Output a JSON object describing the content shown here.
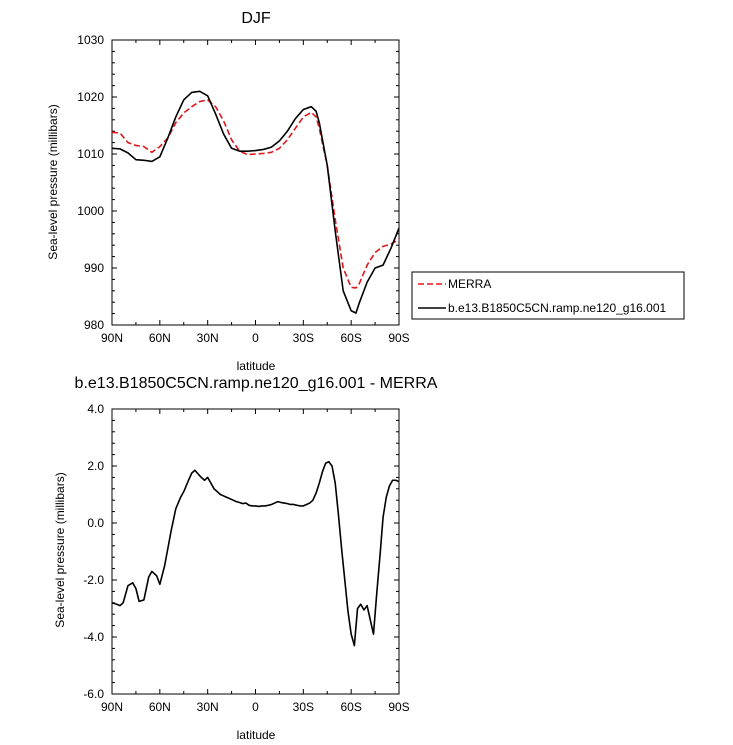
{
  "chart_data": [
    {
      "type": "line",
      "title": "DJF",
      "xlabel": "latitude",
      "ylabel": "Sea-level pressure (millibars)",
      "ylim": [
        980,
        1030
      ],
      "xlim": [
        90,
        -90
      ],
      "x_ticks": [
        90,
        60,
        30,
        0,
        -30,
        -60,
        -90
      ],
      "x_tick_labels": [
        "90N",
        "60N",
        "30N",
        "0",
        "30S",
        "60S",
        "90S"
      ],
      "y_ticks": [
        980,
        990,
        1000,
        1010,
        1020,
        1030
      ],
      "y_tick_labels": [
        "980",
        "990",
        "1000",
        "1010",
        "1020",
        "1030"
      ],
      "grid": false,
      "legend": "right-outside",
      "series": [
        {
          "name": "MERRA",
          "color": "#e0161b",
          "style": "dashed",
          "x": [
            90,
            85,
            80,
            75,
            70,
            65,
            60,
            55,
            50,
            45,
            40,
            35,
            30,
            25,
            20,
            15,
            10,
            5,
            0,
            -5,
            -10,
            -15,
            -20,
            -25,
            -30,
            -35,
            -38,
            -40,
            -45,
            -50,
            -55,
            -60,
            -63,
            -65,
            -70,
            -75,
            -80,
            -85,
            -90
          ],
          "y": [
            1013.8,
            1013.7,
            1012,
            1011.5,
            1011.3,
            1010.3,
            1011.3,
            1012.8,
            1015.5,
            1017.2,
            1018.3,
            1019.2,
            1019.5,
            1018.3,
            1015.8,
            1012.5,
            1010.5,
            1009.9,
            1010,
            1010.1,
            1010.3,
            1011,
            1012.5,
            1014.5,
            1016.5,
            1017.3,
            1016.5,
            1014.5,
            1008,
            998.5,
            990,
            986.6,
            986.5,
            987.2,
            990.5,
            992.7,
            993.8,
            994.2,
            995
          ]
        },
        {
          "name": "b.e13.B1850C5CN.ramp.ne120_g16.001",
          "color": "#000000",
          "style": "solid",
          "x": [
            90,
            85,
            80,
            75,
            70,
            65,
            60,
            55,
            50,
            45,
            40,
            35,
            30,
            25,
            20,
            15,
            10,
            5,
            0,
            -5,
            -10,
            -15,
            -20,
            -25,
            -30,
            -35,
            -38,
            -40,
            -45,
            -50,
            -55,
            -60,
            -63,
            -65,
            -70,
            -75,
            -80,
            -85,
            -90
          ],
          "y": [
            1011,
            1010.9,
            1010.2,
            1009,
            1008.9,
            1008.7,
            1009.5,
            1012.8,
            1016.5,
            1019.5,
            1020.8,
            1021,
            1020.2,
            1017,
            1013.5,
            1011,
            1010.5,
            1010.5,
            1010.6,
            1010.8,
            1011.2,
            1012.3,
            1014,
            1016.2,
            1017.8,
            1018.3,
            1017.5,
            1015.5,
            1008,
            996.5,
            986,
            982.5,
            982.1,
            983.8,
            987.5,
            990,
            990.5,
            993.5,
            997
          ]
        }
      ]
    },
    {
      "type": "line",
      "title": "b.e13.B1850C5CN.ramp.ne120_g16.001 - MERRA",
      "xlabel": "latitude",
      "ylabel": "Sea-level pressure (millibars)",
      "ylim": [
        -6,
        4
      ],
      "xlim": [
        90,
        -90
      ],
      "x_ticks": [
        90,
        60,
        30,
        0,
        -30,
        -60,
        -90
      ],
      "x_tick_labels": [
        "90N",
        "60N",
        "30N",
        "0",
        "30S",
        "60S",
        "90S"
      ],
      "y_ticks": [
        -6,
        -4,
        -2,
        0,
        2,
        4
      ],
      "y_tick_labels": [
        "-6.0",
        "-4.0",
        "-2.0",
        "0.0",
        "2.0",
        "4.0"
      ],
      "grid": false,
      "series": [
        {
          "color": "#000000",
          "style": "solid",
          "x": [
            90,
            87,
            85,
            83,
            80,
            77,
            75,
            73,
            70,
            67,
            65,
            62,
            60,
            57,
            55,
            53,
            50,
            47,
            45,
            42,
            40,
            38,
            36,
            34,
            32,
            30,
            28,
            26,
            24,
            22,
            20,
            18,
            16,
            14,
            12,
            10,
            8,
            6,
            4,
            2,
            0,
            -2,
            -4,
            -6,
            -8,
            -10,
            -12,
            -14,
            -16,
            -18,
            -20,
            -22,
            -24,
            -26,
            -28,
            -30,
            -32,
            -34,
            -36,
            -38,
            -40,
            -42,
            -44,
            -46,
            -48,
            -50,
            -52,
            -54,
            -56,
            -58,
            -60,
            -62,
            -64,
            -66,
            -68,
            -70,
            -72,
            -74,
            -76,
            -78,
            -80,
            -82,
            -84,
            -86,
            -88,
            -90
          ],
          "y": [
            -2.8,
            -2.85,
            -2.9,
            -2.8,
            -2.2,
            -2.1,
            -2.3,
            -2.75,
            -2.7,
            -1.9,
            -1.7,
            -1.85,
            -2.15,
            -1.5,
            -0.9,
            -0.3,
            0.5,
            0.9,
            1.1,
            1.5,
            1.75,
            1.85,
            1.72,
            1.6,
            1.5,
            1.6,
            1.4,
            1.2,
            1.1,
            1.0,
            0.95,
            0.9,
            0.85,
            0.8,
            0.75,
            0.72,
            0.68,
            0.7,
            0.62,
            0.6,
            0.6,
            0.58,
            0.6,
            0.6,
            0.62,
            0.65,
            0.7,
            0.75,
            0.72,
            0.7,
            0.68,
            0.65,
            0.65,
            0.62,
            0.6,
            0.6,
            0.65,
            0.7,
            0.8,
            1.05,
            1.4,
            1.8,
            2.1,
            2.15,
            2.0,
            1.4,
            0.3,
            -0.9,
            -2.0,
            -3.1,
            -3.9,
            -4.3,
            -3.0,
            -2.85,
            -3.05,
            -2.9,
            -3.4,
            -3.9,
            -2.5,
            -1.2,
            0.2,
            0.9,
            1.3,
            1.5,
            1.5,
            1.45
          ]
        }
      ]
    }
  ]
}
